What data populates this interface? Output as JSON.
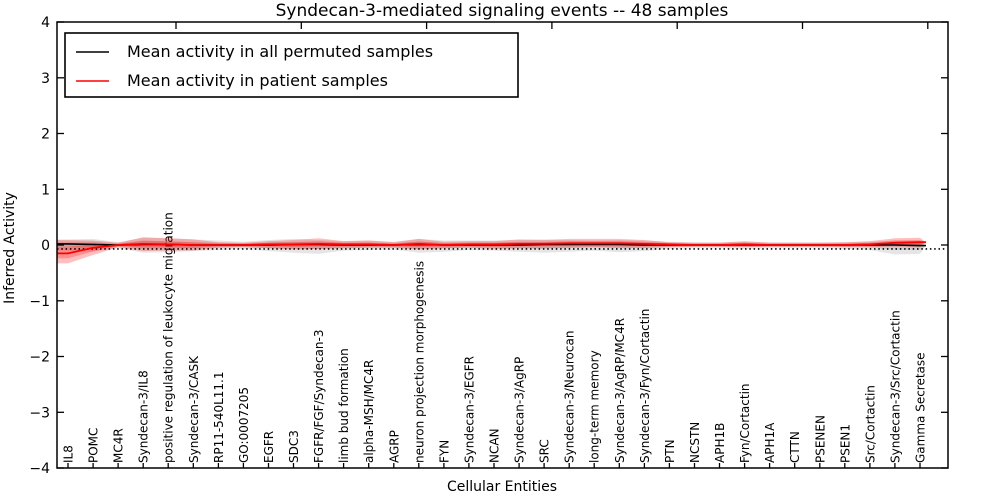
{
  "chart_data": {
    "type": "line",
    "title": "Syndecan-3-mediated signaling events -- 48 samples",
    "xlabel": "Cellular Entities",
    "ylabel": "Inferred Activity",
    "ylim": [
      -4,
      4
    ],
    "yticks": [
      -4,
      -3,
      -2,
      -1,
      0,
      1,
      2,
      3,
      4
    ],
    "ytick_labels": [
      "−4",
      "−3",
      "−2",
      "−1",
      "0",
      "1",
      "2",
      "3",
      "4"
    ],
    "grid": false,
    "legend_position": "upper left",
    "categories": [
      "IL8",
      "POMC",
      "MC4R",
      "Syndecan-3/IL8",
      "positive regulation of leukocyte migration",
      "Syndecan-3/CASK",
      "RP11-540L11.1",
      "GO:0007205",
      "EGFR",
      "SDC3",
      "FGFR/FGF/Syndecan-3",
      "limb bud formation",
      "alpha-MSH/MC4R",
      "AGRP",
      "neuron projection morphogenesis",
      "FYN",
      "Syndecan-3/EGFR",
      "NCAN",
      "Syndecan-3/AgRP",
      "SRC",
      "Syndecan-3/Neurocan",
      "long-term memory",
      "Syndecan-3/AgRP/MC4R",
      "Syndecan-3/Fyn/Cortactin",
      "PTN",
      "NCSTN",
      "APH1B",
      "Fyn/Cortactin",
      "APH1A",
      "CTTN",
      "PSENEN",
      "PSEN1",
      "Src/Cortactin",
      "Syndecan-3/Src/Cortactin",
      "Gamma Secretase"
    ],
    "series": [
      {
        "name": "Mean activity in all permuted samples",
        "color": "#000000",
        "style": "solid",
        "values": [
          0.02,
          0.01,
          0.0,
          0.01,
          0.01,
          0.0,
          0.0,
          0.0,
          0.0,
          0.01,
          0.01,
          0.0,
          0.0,
          0.0,
          0.01,
          0.0,
          0.0,
          0.0,
          0.0,
          0.01,
          0.01,
          0.01,
          0.01,
          0.0,
          0.0,
          0.0,
          0.0,
          0.0,
          0.0,
          0.0,
          0.0,
          0.0,
          0.0,
          0.0,
          -0.01
        ]
      },
      {
        "name": "Mean activity in patient samples",
        "color": "#ff0000",
        "style": "solid",
        "values": [
          -0.15,
          -0.05,
          0.0,
          0.02,
          0.01,
          0.0,
          0.0,
          0.0,
          0.01,
          0.01,
          0.02,
          0.01,
          0.01,
          0.0,
          0.02,
          0.0,
          0.01,
          0.01,
          0.02,
          0.02,
          0.03,
          0.03,
          0.03,
          0.02,
          0.01,
          0.0,
          0.0,
          0.01,
          0.0,
          0.0,
          0.0,
          0.0,
          0.01,
          0.04,
          0.05
        ]
      }
    ],
    "dotted_reference": -0.07,
    "bands": [
      {
        "name": "permuted samples range",
        "color": "#000000",
        "opacity": 0.1,
        "upper": [
          0.1,
          0.11,
          0.05,
          0.13,
          0.12,
          0.1,
          0.08,
          0.06,
          0.09,
          0.11,
          0.09,
          0.07,
          0.08,
          0.06,
          0.11,
          0.08,
          0.08,
          0.08,
          0.09,
          0.1,
          0.09,
          0.08,
          0.09,
          0.08,
          0.06,
          0.05,
          0.05,
          0.06,
          0.05,
          0.05,
          0.05,
          0.05,
          0.06,
          0.08,
          0.07
        ],
        "lower": [
          -0.1,
          -0.12,
          -0.06,
          -0.14,
          -0.13,
          -0.11,
          -0.09,
          -0.07,
          -0.11,
          -0.14,
          -0.16,
          -0.1,
          -0.09,
          -0.08,
          -0.14,
          -0.12,
          -0.09,
          -0.1,
          -0.12,
          -0.14,
          -0.12,
          -0.1,
          -0.13,
          -0.11,
          -0.07,
          -0.06,
          -0.06,
          -0.07,
          -0.06,
          -0.06,
          -0.06,
          -0.07,
          -0.09,
          -0.17,
          -0.16
        ]
      },
      {
        "name": "patient samples range",
        "color": "#ff0000",
        "opacity": 0.25,
        "upper": [
          0.09,
          0.08,
          0.04,
          0.14,
          0.12,
          0.1,
          0.05,
          0.04,
          0.07,
          0.09,
          0.12,
          0.07,
          0.08,
          0.05,
          0.11,
          0.06,
          0.07,
          0.07,
          0.1,
          0.09,
          0.11,
          0.11,
          0.11,
          0.09,
          0.05,
          0.04,
          0.04,
          0.07,
          0.04,
          0.04,
          0.04,
          0.05,
          0.07,
          0.12,
          0.13
        ],
        "lower": [
          -0.33,
          -0.18,
          -0.04,
          -0.11,
          -0.1,
          -0.1,
          -0.05,
          -0.04,
          -0.06,
          -0.08,
          -0.07,
          -0.06,
          -0.05,
          -0.05,
          -0.08,
          -0.06,
          -0.05,
          -0.07,
          -0.06,
          -0.06,
          -0.05,
          -0.04,
          -0.05,
          -0.05,
          -0.04,
          -0.03,
          -0.03,
          -0.04,
          -0.03,
          -0.03,
          -0.03,
          -0.04,
          -0.04,
          -0.03,
          -0.04
        ]
      }
    ]
  }
}
